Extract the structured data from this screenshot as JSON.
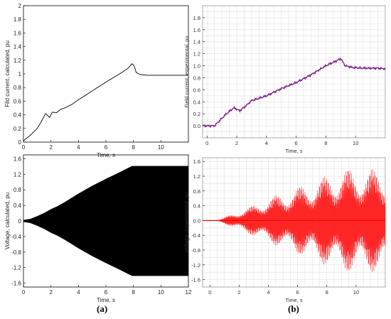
{
  "figure": {
    "panel_labels": [
      "(a)",
      "(b)"
    ]
  },
  "chart_data": [
    {
      "id": "a-top",
      "type": "line",
      "xlabel": "Time, s",
      "ylabel": "Fild current, calculated, pu",
      "xlim": [
        0,
        12
      ],
      "ylim": [
        0,
        2
      ],
      "xticks": [
        0,
        2,
        4,
        6,
        8,
        10
      ],
      "yticks": [
        0,
        0.2,
        0.4,
        0.6,
        0.8,
        1,
        1.2,
        1.4,
        1.6,
        1.8,
        2
      ],
      "ytick_labels": [
        "0",
        "0.2",
        "0.4",
        "0.6",
        "0.8",
        "1",
        "1.2",
        "1.4",
        "1.6",
        "1.8",
        "2"
      ],
      "grid": false,
      "series": [
        {
          "color": "#000000",
          "x": [
            0,
            0.5,
            1.0,
            1.3,
            1.6,
            1.9,
            2.1,
            2.4,
            2.7,
            3.0,
            3.5,
            4.0,
            5.0,
            6.0,
            7.0,
            7.6,
            7.9,
            8.05,
            8.2,
            8.5,
            9.0,
            10.0,
            11.0,
            12.0
          ],
          "y": [
            0.02,
            0.1,
            0.2,
            0.3,
            0.42,
            0.36,
            0.44,
            0.43,
            0.48,
            0.5,
            0.55,
            0.62,
            0.75,
            0.88,
            1.0,
            1.08,
            1.15,
            1.12,
            1.02,
            0.99,
            0.98,
            0.98,
            0.98,
            0.98
          ]
        }
      ]
    },
    {
      "id": "b-top",
      "type": "line",
      "xlabel": "Time, s",
      "ylabel": "Field current, experimental, pu",
      "xlim": [
        -0.3,
        12
      ],
      "ylim": [
        -0.2,
        2
      ],
      "xticks": [
        0,
        2,
        4,
        6,
        8,
        10
      ],
      "yticks": [
        0,
        0.2,
        0.4,
        0.6,
        0.8,
        1.0,
        1.2,
        1.4,
        1.6,
        1.8
      ],
      "ytick_labels": [
        "0.0",
        "0.2",
        "0.4",
        "0.6",
        "0.8",
        "1.0",
        "1.2",
        "1.4",
        "1.6",
        "1.8"
      ],
      "grid": true,
      "series": [
        {
          "color": "#7b1a8a",
          "x": [
            -0.3,
            0.5,
            0.9,
            1.3,
            1.8,
            2.2,
            2.6,
            3.0,
            3.4,
            4.0,
            5.0,
            6.0,
            7.0,
            8.0,
            8.7,
            9.0,
            9.3,
            9.8,
            10.5,
            11.5,
            12.0
          ],
          "y": [
            0.0,
            0.0,
            0.1,
            0.2,
            0.3,
            0.25,
            0.33,
            0.42,
            0.45,
            0.5,
            0.62,
            0.72,
            0.85,
            1.0,
            1.08,
            1.12,
            1.0,
            0.97,
            0.96,
            0.96,
            0.95
          ]
        }
      ]
    },
    {
      "id": "a-bottom",
      "type": "area",
      "xlabel": "Time, s",
      "ylabel": "Voltage, calculated, pu",
      "xlim": [
        0,
        12
      ],
      "ylim": [
        -1.7,
        1.7
      ],
      "xticks": [
        0,
        2,
        4,
        6,
        8,
        10,
        12
      ],
      "yticks": [
        -1.6,
        -1.2,
        -0.8,
        -0.4,
        0,
        0.4,
        0.8,
        1.2,
        1.6
      ],
      "ytick_labels": [
        "-1.6",
        "-1.2",
        "-0.8",
        "-0.4",
        "0",
        "0.4",
        "0.8",
        "1.2",
        "1.6"
      ],
      "grid": false,
      "series": [
        {
          "color": "#000000",
          "x": [
            0,
            0.5,
            1.0,
            1.5,
            2.0,
            2.5,
            3.0,
            4.0,
            5.0,
            6.0,
            7.0,
            7.9,
            8.0,
            12.0
          ],
          "y": [
            0.02,
            0.05,
            0.12,
            0.2,
            0.3,
            0.38,
            0.48,
            0.7,
            0.9,
            1.08,
            1.25,
            1.41,
            1.41,
            1.41
          ]
        }
      ]
    },
    {
      "id": "b-bottom",
      "type": "area",
      "xlabel": "Time, s",
      "ylabel": "Voltage, experimental, pu",
      "xlim": [
        -0.5,
        12
      ],
      "ylim": [
        -1.8,
        1.7
      ],
      "xticks": [
        0,
        2,
        4,
        6,
        8,
        10
      ],
      "yticks": [
        -1.6,
        -1.2,
        -0.8,
        -0.4,
        0.0,
        0.4,
        0.8,
        1.2,
        1.6
      ],
      "ytick_labels": [
        "-1.6",
        "-1.2",
        "-0.8",
        "-0.4",
        "0.0",
        "0.4",
        "0.8",
        "1.2",
        "1.6"
      ],
      "grid": true,
      "series": [
        {
          "color": "#ff0000",
          "x": [
            -0.5,
            0.5,
            0.8,
            1.5,
            2.0,
            3.0,
            4.0,
            5.0,
            6.0,
            7.0,
            8.0,
            9.0,
            9.5,
            10.5,
            11.5,
            12.0
          ],
          "y": [
            0.0,
            0.0,
            0.05,
            0.18,
            0.25,
            0.42,
            0.6,
            0.75,
            0.9,
            1.05,
            1.22,
            1.38,
            1.4,
            1.38,
            1.4,
            1.38
          ]
        }
      ]
    }
  ]
}
